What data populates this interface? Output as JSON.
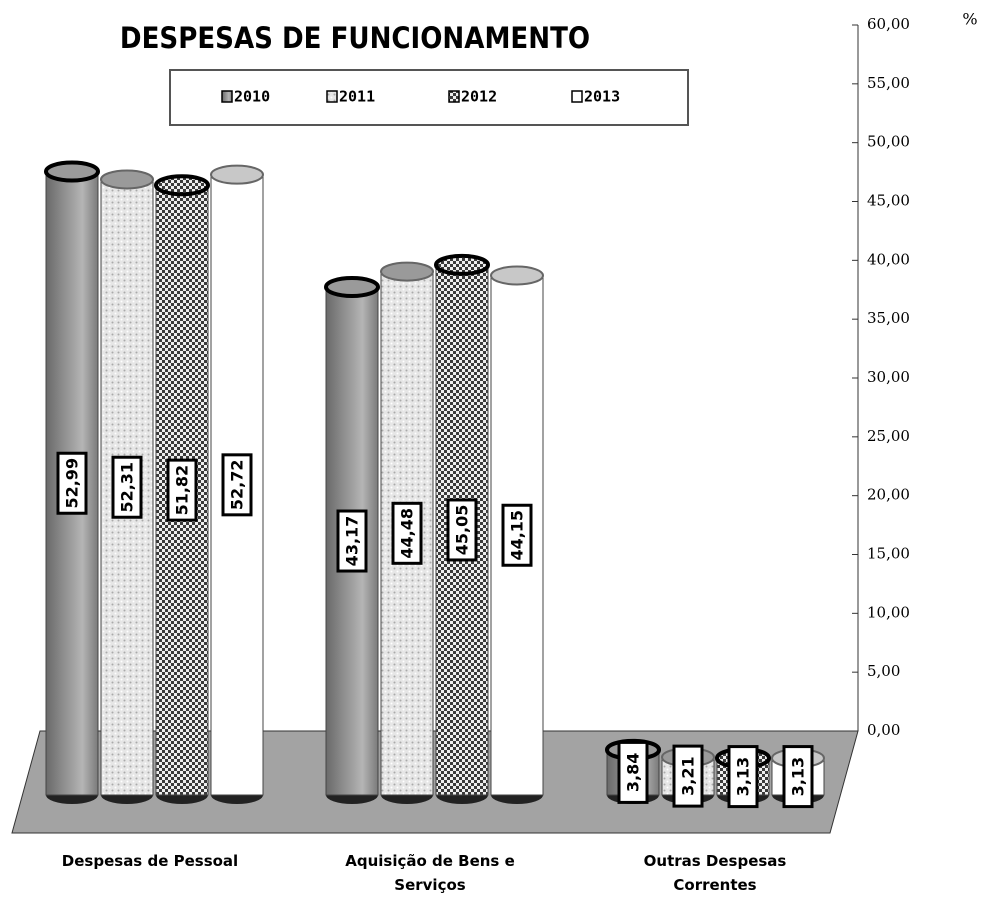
{
  "chart_data": {
    "type": "bar3d",
    "title": "DESPESAS DE FUNCIONAMENTO",
    "y_label": "%",
    "categories": [
      "Despesas de Pessoal",
      "Aquisição de Bens e Serviços",
      "Outras Despesas Correntes"
    ],
    "series": [
      {
        "name": "2010",
        "color": "#8f8f8f",
        "values": [
          52.99,
          43.17,
          3.84
        ],
        "value_labels": [
          "52,99",
          "43,17",
          "3,84"
        ]
      },
      {
        "name": "2011",
        "color": "#e6e6e6",
        "values": [
          52.31,
          44.48,
          3.21
        ],
        "value_labels": [
          "52,31",
          "44,48",
          "3,21"
        ]
      },
      {
        "name": "2012",
        "color": "#3a3a3a",
        "values": [
          51.82,
          45.05,
          3.13
        ],
        "value_labels": [
          "51,82",
          "45,05",
          "3,13"
        ]
      },
      {
        "name": "2013",
        "color": "#ffffff",
        "values": [
          52.72,
          44.15,
          3.13
        ],
        "value_labels": [
          "52,72",
          "44,15",
          "3,13"
        ]
      }
    ],
    "ylim": [
      0,
      60
    ],
    "yticks": [
      {
        "value": 0,
        "label": "0,00"
      },
      {
        "value": 5,
        "label": "5,00"
      },
      {
        "value": 10,
        "label": "10,00"
      },
      {
        "value": 15,
        "label": "15,00"
      },
      {
        "value": 20,
        "label": "20,00"
      },
      {
        "value": 25,
        "label": "25,00"
      },
      {
        "value": 30,
        "label": "30,00"
      },
      {
        "value": 35,
        "label": "35,00"
      },
      {
        "value": 40,
        "label": "40,00"
      },
      {
        "value": 45,
        "label": "45,00"
      },
      {
        "value": 50,
        "label": "50,00"
      },
      {
        "value": 55,
        "label": "55,00"
      },
      {
        "value": 60,
        "label": "60,00"
      }
    ],
    "legend": "top"
  }
}
